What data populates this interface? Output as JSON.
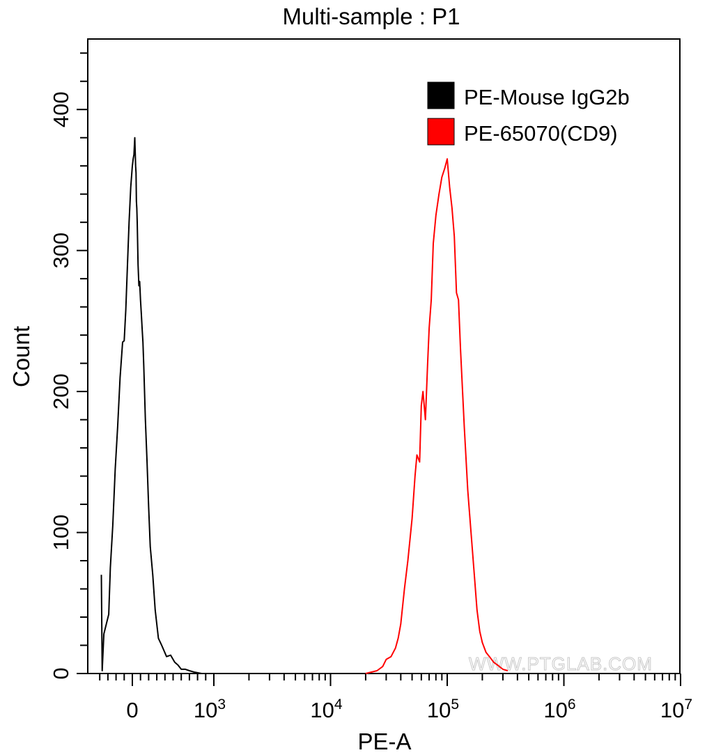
{
  "chart_data": {
    "type": "line",
    "title": "Multi-sample : P1",
    "xlabel": "PE-A",
    "ylabel": "Count",
    "x_scale": "biexponential",
    "ylim": [
      0,
      450
    ],
    "y_ticks": [
      0,
      100,
      200,
      300,
      400
    ],
    "x_ticks": [
      {
        "value": 0,
        "base": "0",
        "exp": ""
      },
      {
        "value": 1000,
        "base": "10",
        "exp": "3"
      },
      {
        "value": 10000,
        "base": "10",
        "exp": "4"
      },
      {
        "value": 100000,
        "base": "10",
        "exp": "5"
      },
      {
        "value": 1000000,
        "base": "10",
        "exp": "6"
      },
      {
        "value": 10000000,
        "base": "10",
        "exp": "7"
      }
    ],
    "legend_position": "top-right",
    "watermark": "WWW.PTGLAB.COM",
    "series": [
      {
        "name": "PE-Mouse IgG2b",
        "color": "#000000",
        "x": [
          -380,
          -370,
          -350,
          -320,
          -290,
          -270,
          -240,
          -210,
          -180,
          -150,
          -120,
          -100,
          -80,
          -60,
          -40,
          -20,
          0,
          10,
          20,
          30,
          40,
          45,
          50,
          55,
          60,
          70,
          80,
          90,
          100,
          110,
          120,
          130,
          140,
          160,
          180,
          200,
          220,
          250,
          280,
          320,
          360,
          420,
          470,
          520,
          560,
          600,
          650,
          700,
          760,
          850
        ],
        "y": [
          70,
          2,
          28,
          35,
          42,
          75,
          105,
          145,
          175,
          210,
          235,
          236,
          258,
          290,
          320,
          345,
          360,
          365,
          368,
          380,
          360,
          355,
          335,
          330,
          320,
          290,
          275,
          278,
          265,
          255,
          245,
          235,
          218,
          180,
          150,
          118,
          90,
          70,
          45,
          25,
          20,
          12,
          13,
          8,
          6,
          3,
          3,
          2,
          1,
          0
        ]
      },
      {
        "name": "PE-65070(CD9)",
        "color": "#ff0000",
        "x": [
          20000,
          25000,
          28000,
          30000,
          33000,
          36000,
          38000,
          40000,
          43000,
          46000,
          50000,
          53000,
          55000,
          58000,
          60000,
          62000,
          65000,
          68000,
          70000,
          73000,
          76000,
          80000,
          85000,
          90000,
          95000,
          100000,
          105000,
          110000,
          115000,
          120000,
          125000,
          130000,
          140000,
          150000,
          160000,
          170000,
          180000,
          190000,
          200000,
          215000,
          230000,
          250000,
          270000,
          300000,
          330000
        ],
        "y": [
          0,
          2,
          5,
          10,
          12,
          18,
          25,
          35,
          60,
          80,
          110,
          140,
          155,
          150,
          190,
          200,
          180,
          220,
          245,
          265,
          305,
          325,
          340,
          352,
          358,
          365,
          345,
          330,
          310,
          270,
          265,
          230,
          175,
          130,
          100,
          72,
          45,
          30,
          22,
          15,
          12,
          8,
          6,
          3,
          2
        ]
      }
    ]
  }
}
